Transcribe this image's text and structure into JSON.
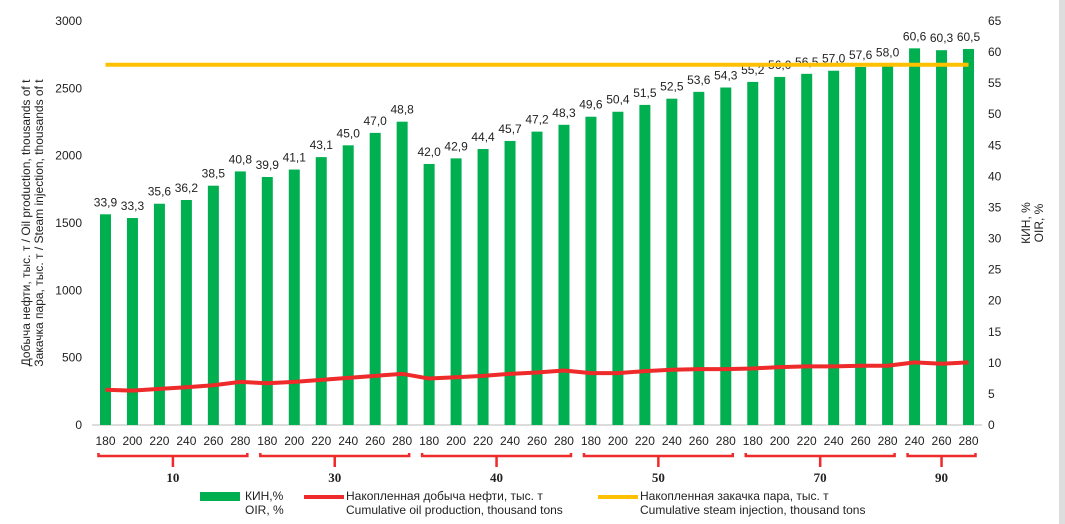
{
  "chart_data": {
    "type": "bar",
    "ylabel_left": "Добыча нефти, тыс. т / Oil production, thousands of t\nЗакачка пара, тыс. т / Steam injection, thousands of t",
    "ylabel_left_lines": [
      "Добыча нефти, тыс. т / Oil production, thousands of t",
      "Закачка пара, тыс. т / Steam injection, thousands of t"
    ],
    "ylabel_right_lines": [
      "КИН, %",
      "OIR, %"
    ],
    "ylim_left": [
      0,
      3000
    ],
    "yticks_left": [
      0,
      500,
      1000,
      1500,
      2000,
      2500,
      3000
    ],
    "ylim_right": [
      0,
      65
    ],
    "yticks_right": [
      0,
      5,
      10,
      15,
      20,
      25,
      30,
      35,
      40,
      45,
      50,
      55,
      60,
      65
    ],
    "categories": [
      "180",
      "200",
      "220",
      "240",
      "260",
      "280",
      "180",
      "200",
      "220",
      "240",
      "260",
      "280",
      "180",
      "200",
      "220",
      "240",
      "260",
      "280",
      "180",
      "200",
      "220",
      "240",
      "260",
      "280",
      "180",
      "200",
      "220",
      "240",
      "260",
      "280",
      "240",
      "260",
      "280"
    ],
    "groups": [
      {
        "label": "10",
        "count": 6
      },
      {
        "label": "30",
        "count": 6
      },
      {
        "label": "40",
        "count": 6
      },
      {
        "label": "50",
        "count": 6
      },
      {
        "label": "70",
        "count": 6
      },
      {
        "label": "90",
        "count": 3
      }
    ],
    "series": [
      {
        "name": "КИН,% / OIR, %",
        "legend_lines": [
          "КИН,%",
          "OIR, %"
        ],
        "type": "bar",
        "axis": "right",
        "color": "#00b050",
        "values": [
          33.9,
          33.3,
          35.6,
          36.2,
          38.5,
          40.8,
          39.9,
          41.1,
          43.1,
          45.0,
          47.0,
          48.8,
          42.0,
          42.9,
          44.4,
          45.7,
          47.2,
          48.3,
          49.6,
          50.4,
          51.5,
          52.5,
          53.6,
          54.3,
          55.2,
          56.0,
          56.5,
          57.0,
          57.6,
          58.0,
          60.6,
          60.3,
          60.5
        ],
        "labels": [
          "33,9",
          "33,3",
          "35,6",
          "36,2",
          "38,5",
          "40,8",
          "39,9",
          "41,1",
          "43,1",
          "45,0",
          "47,0",
          "48,8",
          "42,0",
          "42,9",
          "44,4",
          "45,7",
          "47,2",
          "48,3",
          "49,6",
          "50,4",
          "51,5",
          "52,5",
          "53,6",
          "54,3",
          "55,2",
          "56,0",
          "56,5",
          "57,0",
          "57,6",
          "58,0",
          "60,6",
          "60,3",
          "60,5"
        ]
      },
      {
        "name": "Накопленная добыча нефти, тыс. т / Cumulative oil production, thousand tons",
        "legend_lines": [
          "Накопленная добыча нефти, тыс. т",
          "Cumulative oil production, thousand tons"
        ],
        "type": "line",
        "axis": "left",
        "color": "#ee2a2a",
        "values": [
          262,
          255,
          268,
          280,
          295,
          320,
          310,
          320,
          335,
          350,
          365,
          380,
          345,
          355,
          365,
          380,
          390,
          405,
          385,
          385,
          400,
          410,
          415,
          415,
          420,
          430,
          435,
          435,
          440,
          440,
          465,
          455,
          465
        ]
      },
      {
        "name": "Накопленная закачка пара, тыс. т / Cumulative steam injection, thousand tons",
        "legend_lines": [
          "Накопленная закачка пара, тыс. т",
          "Cumulative steam injection, thousand tons"
        ],
        "type": "line",
        "axis": "left",
        "color": "#ffc000",
        "values": [
          2675,
          2675,
          2675,
          2675,
          2675,
          2675,
          2675,
          2675,
          2675,
          2675,
          2675,
          2675,
          2675,
          2675,
          2675,
          2675,
          2675,
          2675,
          2675,
          2675,
          2675,
          2675,
          2675,
          2675,
          2675,
          2675,
          2675,
          2675,
          2675,
          2675,
          2675,
          2675,
          2675
        ]
      }
    ],
    "legend": "bottom"
  }
}
